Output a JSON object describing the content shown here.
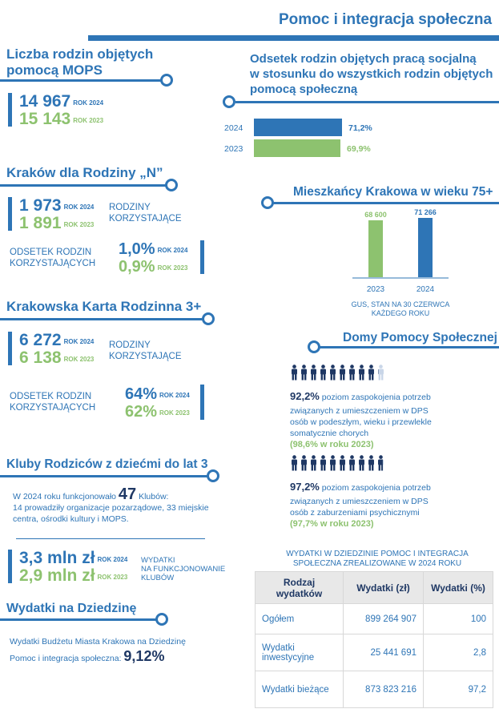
{
  "header": {
    "title": "Pomoc i integracja społeczna"
  },
  "mops": {
    "title_line1": "Liczba rodzin objętych",
    "title_line2": "pomocą MOPS",
    "value_2024": "14 967",
    "tag_2024": "ROK 2024",
    "value_2023": "15 143",
    "tag_2023": "ROK 2023"
  },
  "social_work": {
    "title_line1": "Odsetek rodzin objętych pracą socjalną",
    "title_line2": "w stosunku do wszystkich rodzin objętych",
    "title_line3": "pomocą społeczną",
    "bars": [
      {
        "year": "2024",
        "value": 71.2,
        "label": "71,2%",
        "color": "#2e75b6"
      },
      {
        "year": "2023",
        "value": 69.9,
        "label": "69,9%",
        "color": "#8dc26f"
      }
    ]
  },
  "krakow_n": {
    "title": "Kraków dla Rodziny „N”",
    "value_2024": "1 973",
    "tag_2024": "ROK 2024",
    "value_2023": "1 891",
    "tag_2023": "ROK 2023",
    "families_line1": "RODZINY",
    "families_line2": "KORZYSTAJĄCE",
    "share_line1": "ODSETEK RODZIN",
    "share_line2": "KORZYSTAJĄCYCH",
    "pct_2024": "1,0%",
    "pct_tag_2024": "ROK 2024",
    "pct_2023": "0,9%",
    "pct_tag_2023": "ROK 2023"
  },
  "residents75": {
    "title": "Mieszkańcy Krakowa w wieku 75+",
    "bars": [
      {
        "year": "2023",
        "value": 68600,
        "label": "68 600",
        "color": "#8dc26f"
      },
      {
        "year": "2024",
        "value": 71266,
        "label": "71 266",
        "color": "#2e75b6"
      }
    ],
    "source_line1": "GUS, STAN NA 30 CZERWCA",
    "source_line2": "KAŻDEGO ROKU"
  },
  "kkr": {
    "title": "Krakowska Karta Rodzinna 3+",
    "value_2024": "6 272",
    "tag_2024": "ROK 2024",
    "value_2023": "6 138",
    "tag_2023": "ROK 2023",
    "families_line1": "RODZINY",
    "families_line2": "KORZYSTAJĄCE",
    "share_line1": "ODSETEK RODZIN",
    "share_line2": "KORZYSTAJĄCYCH",
    "pct_2024": "64%",
    "pct_tag_2024": "ROK 2024",
    "pct_2023": "62%",
    "pct_tag_2023": "ROK 2023"
  },
  "dps": {
    "title": "Domy Pomocy Społecznej",
    "icons_1": {
      "full": 9,
      "fraction": 0.22,
      "icon": "person-icon"
    },
    "pct_1": "92,2%",
    "text_1_line1": "poziom zaspokojenia potrzeb",
    "text_1_line2": "związanych z umieszczeniem w DPS",
    "text_1_line3": "osób w podeszłym, wieku i przewlekle",
    "text_1_line4": "somatycznie chorych",
    "prev_1": "(98,6% w roku 2023)",
    "icons_2": {
      "full": 9,
      "fraction": 0.72,
      "icon": "person-icon"
    },
    "pct_2": "97,2%",
    "text_2_line1": "poziom zaspokojenia potrzeb",
    "text_2_line2": "związanych z umieszczeniem w DPS",
    "text_2_line3": "osób z zaburzeniami psychicznymi",
    "prev_2": "(97,7% w roku 2023)"
  },
  "clubs": {
    "title": "Kluby Rodziców z dziećmi do lat 3",
    "text_before": "W 2024 roku funkcjonowało",
    "count": "47",
    "text_after": "Klubów:",
    "text_line2": "14 prowadziły organizacje pozarządowe, 33 miejskie",
    "text_line3": "centra, ośrodki kultury i MOPS.",
    "value_2024": "3,3 mln zł",
    "tag_2024": "ROK 2024",
    "value_2023": "2,9 mln zł",
    "tag_2023": "ROK 2023",
    "desc_line1": "WYDATKI",
    "desc_line2": "NA FUNKCJONOWANIE",
    "desc_line3": "KLUBÓW"
  },
  "expenses": {
    "title": "Wydatki na Dziedzinę",
    "line1": "Wydatki Budżetu Miasta Krakowa na Dziedzinę",
    "line2": "Pomoc i integracja społeczna:",
    "value": "9,12%"
  },
  "table": {
    "caption_line1": "WYDATKI W DZIEDZINIE POMOC I INTEGRACJA",
    "caption_line2": "SPOŁECZNA ZREALIZOWANE W 2024 ROKU",
    "headers": [
      "Rodzaj wydatków",
      "Wydatki (zł)",
      "Wydatki (%)"
    ],
    "rows": [
      [
        "Ogółem",
        "899 264 907",
        "100"
      ],
      [
        "Wydatki inwestycyjne",
        "25 441 691",
        "2,8"
      ],
      [
        "Wydatki bieżące",
        "873 823 216",
        "97,2"
      ]
    ]
  },
  "colors": {
    "blue": "#2e75b6",
    "green": "#8dc26f",
    "dark": "#1f3864"
  }
}
